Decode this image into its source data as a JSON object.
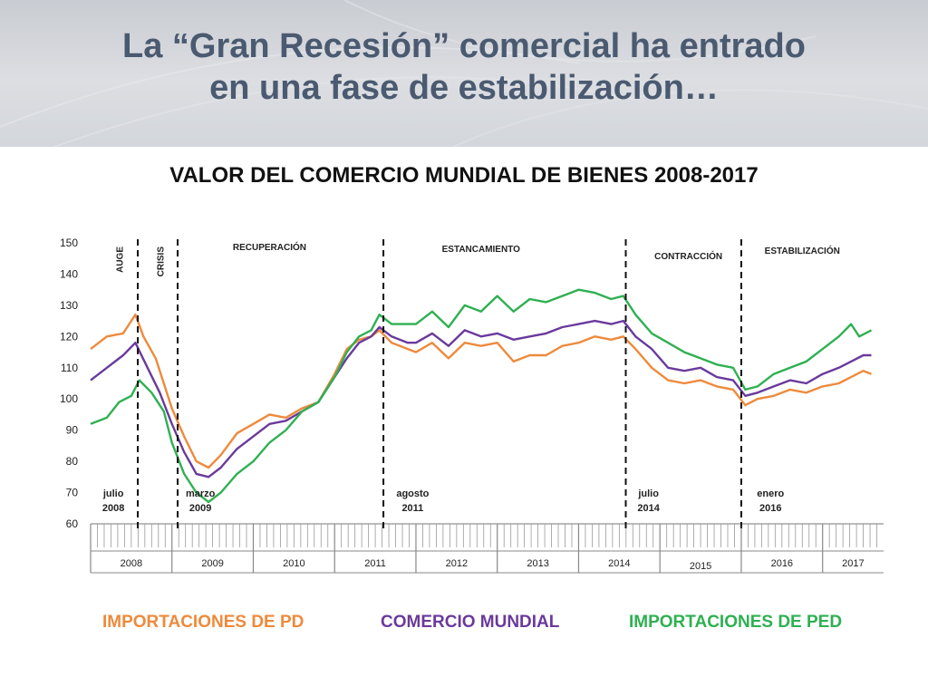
{
  "slide": {
    "title_line1": "La “Gran Recesión” comercial ha entrado",
    "title_line2": "en una fase de estabilización…",
    "chart_heading": "VALOR DEL COMERCIO MUNDIAL DE BIENES 2008-2017"
  },
  "legend": {
    "pd": "IMPORTACIONES DE PD",
    "world": "COMERCIO MUNDIAL",
    "ped": "IMPORTACIONES DE PED"
  },
  "colors": {
    "pd": "#ee8a3c",
    "world": "#6a3a9c",
    "ped": "#2fb052",
    "title": "#4a5a70"
  },
  "chart_data": {
    "type": "line",
    "x_start": "2008-01",
    "x_end": "2017-07",
    "ylim": [
      60,
      150
    ],
    "yticks": [
      60,
      70,
      80,
      90,
      100,
      110,
      120,
      130,
      140,
      150
    ],
    "year_labels": [
      "2008",
      "2009",
      "2010",
      "2011",
      "2012",
      "2013",
      "2014",
      "2015",
      "2016",
      "2017"
    ],
    "series": [
      {
        "name": "IMPORTACIONES DE PD",
        "color": "#ee8a3c",
        "points": [
          [
            2008.0,
            116
          ],
          [
            2008.2,
            120
          ],
          [
            2008.4,
            121
          ],
          [
            2008.55,
            127
          ],
          [
            2008.65,
            120
          ],
          [
            2008.8,
            113
          ],
          [
            2009.0,
            97
          ],
          [
            2009.15,
            88
          ],
          [
            2009.3,
            80
          ],
          [
            2009.45,
            78
          ],
          [
            2009.6,
            82
          ],
          [
            2009.8,
            89
          ],
          [
            2010.0,
            92
          ],
          [
            2010.2,
            95
          ],
          [
            2010.4,
            94
          ],
          [
            2010.6,
            97
          ],
          [
            2010.8,
            99
          ],
          [
            2011.0,
            108
          ],
          [
            2011.15,
            116
          ],
          [
            2011.3,
            119
          ],
          [
            2011.45,
            120
          ],
          [
            2011.55,
            122
          ],
          [
            2011.7,
            118
          ],
          [
            2011.9,
            116
          ],
          [
            2012.0,
            115
          ],
          [
            2012.2,
            118
          ],
          [
            2012.4,
            113
          ],
          [
            2012.6,
            118
          ],
          [
            2012.8,
            117
          ],
          [
            2013.0,
            118
          ],
          [
            2013.2,
            112
          ],
          [
            2013.4,
            114
          ],
          [
            2013.6,
            114
          ],
          [
            2013.8,
            117
          ],
          [
            2014.0,
            118
          ],
          [
            2014.2,
            120
          ],
          [
            2014.4,
            119
          ],
          [
            2014.55,
            120
          ],
          [
            2014.7,
            116
          ],
          [
            2014.9,
            110
          ],
          [
            2015.1,
            106
          ],
          [
            2015.3,
            105
          ],
          [
            2015.5,
            106
          ],
          [
            2015.7,
            104
          ],
          [
            2015.9,
            103
          ],
          [
            2016.05,
            98
          ],
          [
            2016.2,
            100
          ],
          [
            2016.4,
            101
          ],
          [
            2016.6,
            103
          ],
          [
            2016.8,
            102
          ],
          [
            2017.0,
            104
          ],
          [
            2017.2,
            105
          ],
          [
            2017.35,
            107
          ],
          [
            2017.5,
            109
          ],
          [
            2017.6,
            108
          ]
        ]
      },
      {
        "name": "COMERCIO MUNDIAL",
        "color": "#6a3a9c",
        "points": [
          [
            2008.0,
            106
          ],
          [
            2008.2,
            110
          ],
          [
            2008.4,
            114
          ],
          [
            2008.55,
            118
          ],
          [
            2008.7,
            110
          ],
          [
            2008.85,
            102
          ],
          [
            2009.0,
            92
          ],
          [
            2009.15,
            83
          ],
          [
            2009.3,
            76
          ],
          [
            2009.45,
            75
          ],
          [
            2009.6,
            78
          ],
          [
            2009.8,
            84
          ],
          [
            2010.0,
            88
          ],
          [
            2010.2,
            92
          ],
          [
            2010.4,
            93
          ],
          [
            2010.6,
            96
          ],
          [
            2010.8,
            99
          ],
          [
            2011.0,
            107
          ],
          [
            2011.15,
            113
          ],
          [
            2011.3,
            118
          ],
          [
            2011.45,
            120
          ],
          [
            2011.55,
            123
          ],
          [
            2011.7,
            120
          ],
          [
            2011.9,
            118
          ],
          [
            2012.0,
            118
          ],
          [
            2012.2,
            121
          ],
          [
            2012.4,
            117
          ],
          [
            2012.6,
            122
          ],
          [
            2012.8,
            120
          ],
          [
            2013.0,
            121
          ],
          [
            2013.2,
            119
          ],
          [
            2013.4,
            120
          ],
          [
            2013.6,
            121
          ],
          [
            2013.8,
            123
          ],
          [
            2014.0,
            124
          ],
          [
            2014.2,
            125
          ],
          [
            2014.4,
            124
          ],
          [
            2014.55,
            125
          ],
          [
            2014.7,
            120
          ],
          [
            2014.9,
            116
          ],
          [
            2015.1,
            110
          ],
          [
            2015.3,
            109
          ],
          [
            2015.5,
            110
          ],
          [
            2015.7,
            107
          ],
          [
            2015.9,
            106
          ],
          [
            2016.05,
            101
          ],
          [
            2016.2,
            102
          ],
          [
            2016.4,
            104
          ],
          [
            2016.6,
            106
          ],
          [
            2016.8,
            105
          ],
          [
            2017.0,
            108
          ],
          [
            2017.2,
            110
          ],
          [
            2017.35,
            112
          ],
          [
            2017.5,
            114
          ],
          [
            2017.6,
            114
          ]
        ]
      },
      {
        "name": "IMPORTACIONES DE PED",
        "color": "#2fb052",
        "points": [
          [
            2008.0,
            92
          ],
          [
            2008.2,
            94
          ],
          [
            2008.35,
            99
          ],
          [
            2008.5,
            101
          ],
          [
            2008.6,
            106
          ],
          [
            2008.75,
            102
          ],
          [
            2008.9,
            96
          ],
          [
            2009.0,
            86
          ],
          [
            2009.15,
            76
          ],
          [
            2009.3,
            70
          ],
          [
            2009.45,
            67
          ],
          [
            2009.6,
            70
          ],
          [
            2009.8,
            76
          ],
          [
            2010.0,
            80
          ],
          [
            2010.2,
            86
          ],
          [
            2010.4,
            90
          ],
          [
            2010.6,
            96
          ],
          [
            2010.8,
            99
          ],
          [
            2011.0,
            107
          ],
          [
            2011.15,
            115
          ],
          [
            2011.3,
            120
          ],
          [
            2011.45,
            122
          ],
          [
            2011.55,
            127
          ],
          [
            2011.7,
            124
          ],
          [
            2011.9,
            124
          ],
          [
            2012.0,
            124
          ],
          [
            2012.2,
            128
          ],
          [
            2012.4,
            123
          ],
          [
            2012.6,
            130
          ],
          [
            2012.8,
            128
          ],
          [
            2013.0,
            133
          ],
          [
            2013.2,
            128
          ],
          [
            2013.4,
            132
          ],
          [
            2013.6,
            131
          ],
          [
            2013.8,
            133
          ],
          [
            2014.0,
            135
          ],
          [
            2014.2,
            134
          ],
          [
            2014.4,
            132
          ],
          [
            2014.55,
            133
          ],
          [
            2014.7,
            127
          ],
          [
            2014.9,
            121
          ],
          [
            2015.1,
            118
          ],
          [
            2015.3,
            115
          ],
          [
            2015.5,
            113
          ],
          [
            2015.7,
            111
          ],
          [
            2015.9,
            110
          ],
          [
            2016.05,
            103
          ],
          [
            2016.2,
            104
          ],
          [
            2016.4,
            108
          ],
          [
            2016.6,
            110
          ],
          [
            2016.8,
            112
          ],
          [
            2017.0,
            116
          ],
          [
            2017.2,
            120
          ],
          [
            2017.35,
            124
          ],
          [
            2017.45,
            120
          ],
          [
            2017.6,
            122
          ]
        ]
      }
    ],
    "phases": [
      {
        "label": "AUGE",
        "x": 2008.35,
        "rotated": true
      },
      {
        "label": "CRISIS",
        "x": 2008.85,
        "rotated": true
      },
      {
        "label": "RECUPERACIÓN",
        "x": 2010.2,
        "rotated": false
      },
      {
        "label": "ESTANCAMIENTO",
        "x": 2012.8,
        "rotated": false
      },
      {
        "label": "CONTRACCIÓN",
        "x": 2015.35,
        "rotated": false
      },
      {
        "label": "ESTABILIZACIÓN",
        "x": 2016.75,
        "rotated": false
      }
    ],
    "events": [
      {
        "x": 2008.58,
        "line1": "julio",
        "line2": "2008",
        "label_x": 2008.28
      },
      {
        "x": 2009.07,
        "line1": "marzo",
        "line2": "2009",
        "label_x": 2009.35
      },
      {
        "x": 2011.6,
        "line1": "agosto",
        "line2": "2011",
        "label_x": 2011.96
      },
      {
        "x": 2014.58,
        "line1": "julio",
        "line2": "2014",
        "label_x": 2014.86
      },
      {
        "x": 2016.0,
        "line1": "enero",
        "line2": "2016",
        "label_x": 2016.36
      }
    ]
  }
}
